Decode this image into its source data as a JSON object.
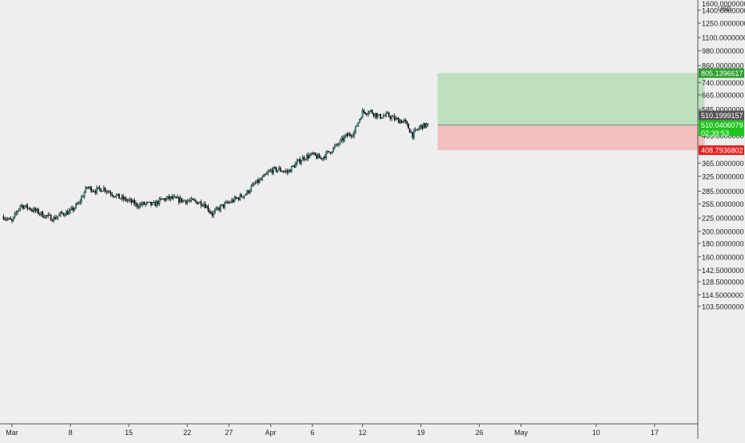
{
  "axis": {
    "currency": "USD",
    "top_label": "1600.0000000"
  },
  "colors": {
    "background": "#eeeeee",
    "axis_line": "#555555",
    "axis_text": "#1f1f1f",
    "up_candle": "#26a69a",
    "candle_body": "#111111",
    "profit_zone": "#bfe0bf",
    "loss_zone": "#f2bfbf",
    "target_badge": "#2e9e2e",
    "stop_badge": "#e02020",
    "entry_badge": "#555555",
    "last_badge": "#1ec41e"
  },
  "chart_data": {
    "type": "candlestick",
    "symbol_currency": "USD",
    "y_scale": "log",
    "y_ticks": [
      {
        "value": 1400,
        "label": "1400.0000000"
      },
      {
        "value": 1250,
        "label": "1250.0000000"
      },
      {
        "value": 1100,
        "label": "1100.0000000"
      },
      {
        "value": 980,
        "label": "980.0000000"
      },
      {
        "value": 860,
        "label": "860.0000000"
      },
      {
        "value": 740,
        "label": "740.0000000"
      },
      {
        "value": 665,
        "label": "665.0000000"
      },
      {
        "value": 585,
        "label": "585.0000000"
      },
      {
        "value": 465,
        "label": "465.0000000"
      },
      {
        "value": 365,
        "label": "365.0000000"
      },
      {
        "value": 325,
        "label": "325.0000000"
      },
      {
        "value": 285,
        "label": "285.0000000"
      },
      {
        "value": 255,
        "label": "255.0000000"
      },
      {
        "value": 225,
        "label": "225.0000000"
      },
      {
        "value": 200,
        "label": "200.0000000"
      },
      {
        "value": 180,
        "label": "180.0000000"
      },
      {
        "value": 160,
        "label": "160.0000000"
      },
      {
        "value": 142.5,
        "label": "142.5000000"
      },
      {
        "value": 128.5,
        "label": "128.5000000"
      },
      {
        "value": 114.5,
        "label": "114.5000000"
      },
      {
        "value": 103.5,
        "label": "103.5000000"
      }
    ],
    "x_ticks": [
      {
        "date": "2021-03-01",
        "label": "Mar"
      },
      {
        "date": "2021-03-08",
        "label": "8"
      },
      {
        "date": "2021-03-15",
        "label": "15"
      },
      {
        "date": "2021-03-22",
        "label": "22"
      },
      {
        "date": "2021-03-27",
        "label": "27"
      },
      {
        "date": "2021-04-01",
        "label": "Apr"
      },
      {
        "date": "2021-04-06",
        "label": "6"
      },
      {
        "date": "2021-04-12",
        "label": "12"
      },
      {
        "date": "2021-04-19",
        "label": "19"
      },
      {
        "date": "2021-04-26",
        "label": "26"
      },
      {
        "date": "2021-05-01",
        "label": "May"
      },
      {
        "date": "2021-05-10",
        "label": "10"
      },
      {
        "date": "2021-05-17",
        "label": "17"
      }
    ],
    "price_series": [
      {
        "date": "2021-02-28",
        "close": 228
      },
      {
        "date": "2021-03-01",
        "close": 218
      },
      {
        "date": "2021-03-02",
        "close": 252
      },
      {
        "date": "2021-03-03",
        "close": 246
      },
      {
        "date": "2021-03-04",
        "close": 238
      },
      {
        "date": "2021-03-05",
        "close": 229
      },
      {
        "date": "2021-03-06",
        "close": 224
      },
      {
        "date": "2021-03-07",
        "close": 234
      },
      {
        "date": "2021-03-08",
        "close": 238
      },
      {
        "date": "2021-03-09",
        "close": 256
      },
      {
        "date": "2021-03-10",
        "close": 295
      },
      {
        "date": "2021-03-11",
        "close": 287
      },
      {
        "date": "2021-03-12",
        "close": 292
      },
      {
        "date": "2021-03-13",
        "close": 279
      },
      {
        "date": "2021-03-14",
        "close": 268
      },
      {
        "date": "2021-03-15",
        "close": 262
      },
      {
        "date": "2021-03-16",
        "close": 252
      },
      {
        "date": "2021-03-17",
        "close": 255
      },
      {
        "date": "2021-03-18",
        "close": 253
      },
      {
        "date": "2021-03-19",
        "close": 265
      },
      {
        "date": "2021-03-20",
        "close": 268
      },
      {
        "date": "2021-03-21",
        "close": 264
      },
      {
        "date": "2021-03-22",
        "close": 262
      },
      {
        "date": "2021-03-23",
        "close": 260
      },
      {
        "date": "2021-03-24",
        "close": 256
      },
      {
        "date": "2021-03-25",
        "close": 233
      },
      {
        "date": "2021-03-26",
        "close": 248
      },
      {
        "date": "2021-03-27",
        "close": 258
      },
      {
        "date": "2021-03-28",
        "close": 268
      },
      {
        "date": "2021-03-29",
        "close": 278
      },
      {
        "date": "2021-03-30",
        "close": 302
      },
      {
        "date": "2021-03-31",
        "close": 318
      },
      {
        "date": "2021-04-01",
        "close": 342
      },
      {
        "date": "2021-04-02",
        "close": 345
      },
      {
        "date": "2021-04-03",
        "close": 337
      },
      {
        "date": "2021-04-04",
        "close": 362
      },
      {
        "date": "2021-04-05",
        "close": 384
      },
      {
        "date": "2021-04-06",
        "close": 392
      },
      {
        "date": "2021-04-07",
        "close": 380
      },
      {
        "date": "2021-04-08",
        "close": 402
      },
      {
        "date": "2021-04-09",
        "close": 428
      },
      {
        "date": "2021-04-10",
        "close": 462
      },
      {
        "date": "2021-04-11",
        "close": 478
      },
      {
        "date": "2021-04-12",
        "close": 572
      },
      {
        "date": "2021-04-13",
        "close": 575
      },
      {
        "date": "2021-04-14",
        "close": 548
      },
      {
        "date": "2021-04-15",
        "close": 556
      },
      {
        "date": "2021-04-16",
        "close": 535
      },
      {
        "date": "2021-04-17",
        "close": 526
      },
      {
        "date": "2021-04-18",
        "close": 468
      },
      {
        "date": "2021-04-19",
        "close": 505
      },
      {
        "date": "2021-04-20",
        "close": 510
      }
    ],
    "position": {
      "type": "long",
      "start_date": "2021-04-21",
      "end_date": "2021-05-23",
      "target": 805.1396617,
      "entry": 510.1999157,
      "stop": 408.7936802
    },
    "price_labels": {
      "target": "805.1396617",
      "entry": "510.1999157",
      "last": "510.0406079",
      "countdown": "02:39:53",
      "stop": "408.7936802"
    }
  }
}
